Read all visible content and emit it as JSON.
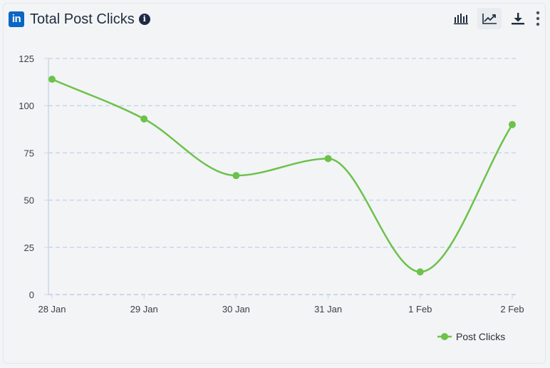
{
  "header": {
    "title": "Total Post Clicks",
    "logo_icon": "linkedin-icon",
    "logo_text": "in",
    "info_icon": "info-icon",
    "info_text": "i"
  },
  "toolbar": {
    "buttons": [
      {
        "icon": "bar-chart-icon",
        "active": false
      },
      {
        "icon": "line-chart-icon",
        "active": true
      },
      {
        "icon": "download-icon",
        "active": false
      },
      {
        "icon": "more-vertical-icon",
        "active": false
      }
    ]
  },
  "colors": {
    "series": "#6cc24a",
    "grid": "#c9d6e8",
    "axis": "#c9d6e8",
    "logo": "#0a66c2"
  },
  "chart_data": {
    "type": "line",
    "title": "Total Post Clicks",
    "categories": [
      "28 Jan",
      "29 Jan",
      "30 Jan",
      "31 Jan",
      "1 Feb",
      "2 Feb"
    ],
    "series": [
      {
        "name": "Post Clicks",
        "values": [
          114,
          93,
          63,
          72,
          12,
          90
        ]
      }
    ],
    "ylim": [
      0,
      125
    ],
    "yticks": [
      0,
      25,
      50,
      75,
      100,
      125
    ],
    "xlabel": "",
    "ylabel": "",
    "grid": true,
    "smooth": true,
    "legend": "bottom-right"
  }
}
